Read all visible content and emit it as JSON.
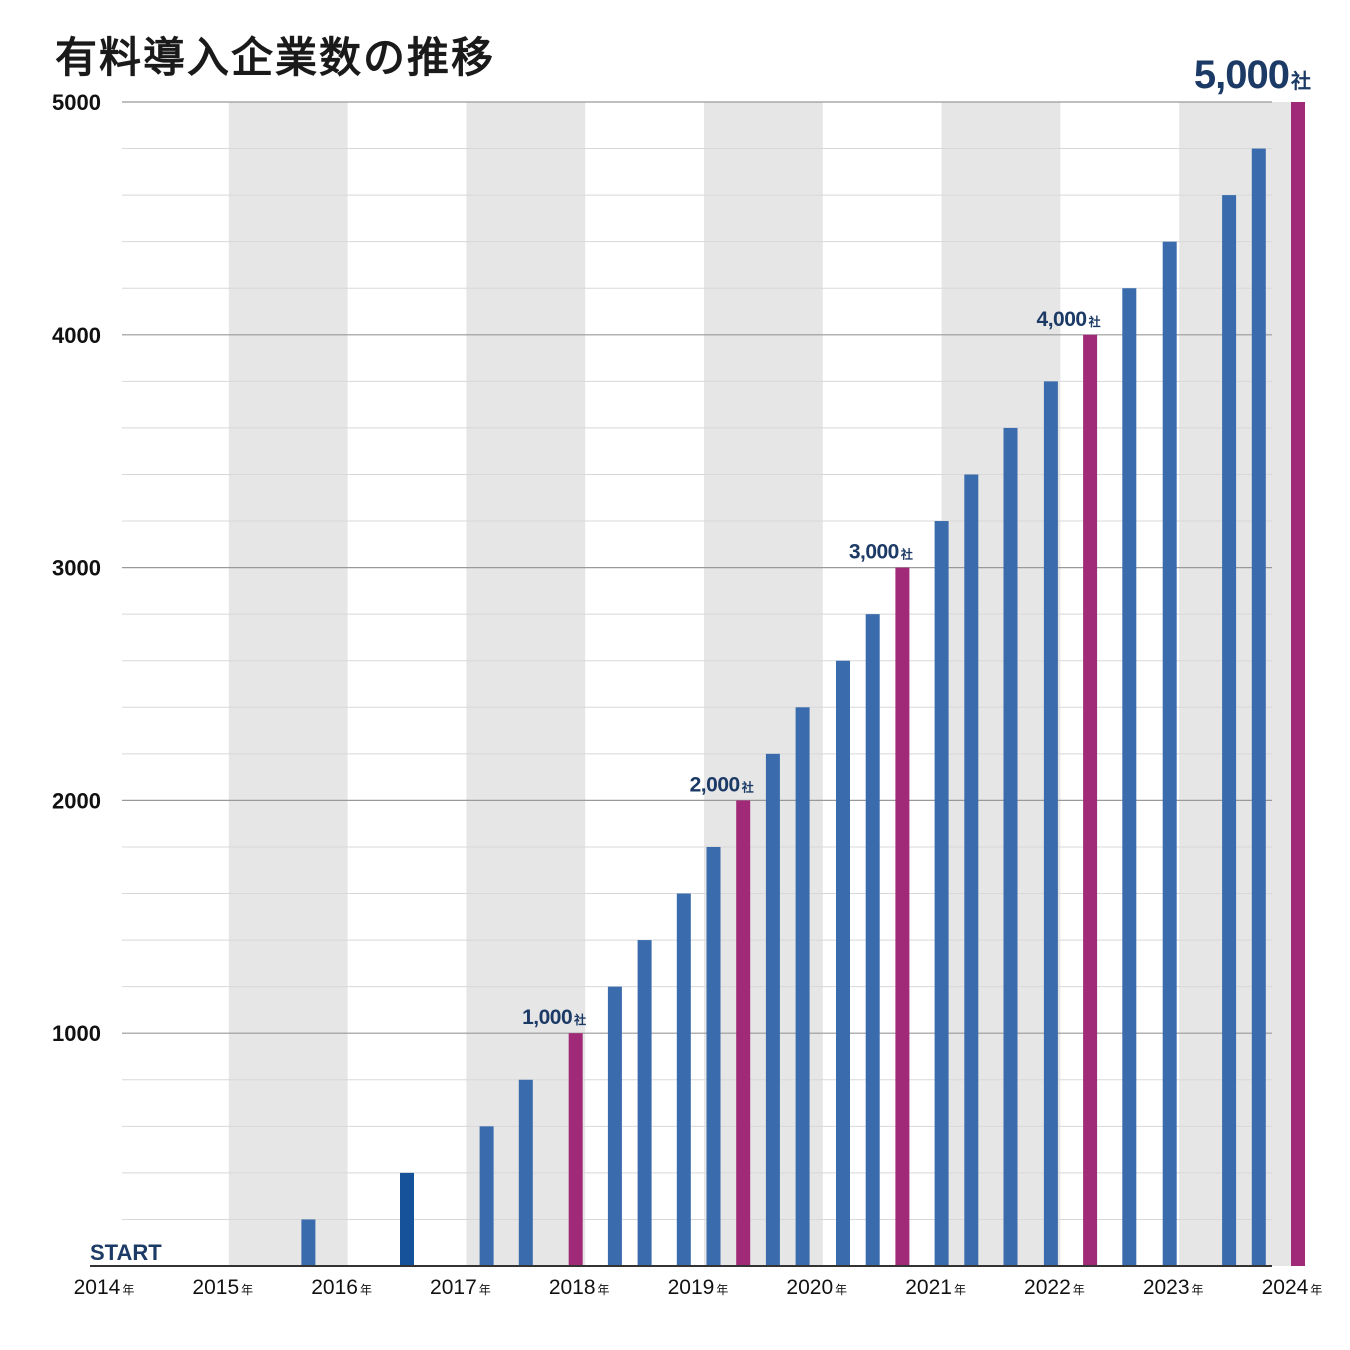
{
  "chart_data": {
    "type": "bar",
    "title": "有料導入企業数の推移",
    "xlabel": "",
    "ylabel": "",
    "ylim": [
      0,
      5000
    ],
    "y_ticks": [
      1000,
      2000,
      3000,
      4000,
      5000
    ],
    "grid": true,
    "year_unit": "年",
    "start_label": "START",
    "milestone_unit": "社",
    "year_labels": [
      "2014",
      "2015",
      "2016",
      "2017",
      "2018",
      "2019",
      "2020",
      "2021",
      "2022",
      "2023",
      "2024"
    ],
    "bars": [
      {
        "x": 2015.67,
        "value": 200,
        "milestone": false
      },
      {
        "x": 2016.5,
        "value": 400,
        "milestone": false
      },
      {
        "x": 2017.17,
        "value": 600,
        "milestone": false
      },
      {
        "x": 2017.5,
        "value": 800,
        "milestone": false
      },
      {
        "x": 2017.92,
        "value": 1000,
        "milestone": true,
        "label": "1,000"
      },
      {
        "x": 2018.25,
        "value": 1200,
        "milestone": false
      },
      {
        "x": 2018.5,
        "value": 1400,
        "milestone": false
      },
      {
        "x": 2018.83,
        "value": 1600,
        "milestone": false
      },
      {
        "x": 2019.08,
        "value": 1800,
        "milestone": false
      },
      {
        "x": 2019.33,
        "value": 2000,
        "milestone": true,
        "label": "2,000"
      },
      {
        "x": 2019.58,
        "value": 2200,
        "milestone": false
      },
      {
        "x": 2019.83,
        "value": 2400,
        "milestone": false
      },
      {
        "x": 2020.17,
        "value": 2600,
        "milestone": false
      },
      {
        "x": 2020.42,
        "value": 2800,
        "milestone": false
      },
      {
        "x": 2020.67,
        "value": 3000,
        "milestone": true,
        "label": "3,000"
      },
      {
        "x": 2021.0,
        "value": 3200,
        "milestone": false
      },
      {
        "x": 2021.25,
        "value": 3400,
        "milestone": false
      },
      {
        "x": 2021.58,
        "value": 3600,
        "milestone": false
      },
      {
        "x": 2021.92,
        "value": 3800,
        "milestone": false
      },
      {
        "x": 2022.25,
        "value": 4000,
        "milestone": true,
        "label": "4,000"
      },
      {
        "x": 2022.58,
        "value": 4200,
        "milestone": false
      },
      {
        "x": 2022.92,
        "value": 4400,
        "milestone": false
      },
      {
        "x": 2023.42,
        "value": 4600,
        "milestone": false
      },
      {
        "x": 2023.67,
        "value": 4800,
        "milestone": false
      },
      {
        "x": 2024.0,
        "value": 5000,
        "milestone": true,
        "label": "5,000"
      }
    ],
    "colors": {
      "bar": "#3a6cad",
      "bar_dark": "#15529a",
      "milestone": "#a12a78",
      "label": "#1c3a66",
      "band": "#e6e6e6",
      "grid_major": "#999999",
      "grid_minor": "#d8d8d8",
      "axis": "#333333"
    }
  }
}
